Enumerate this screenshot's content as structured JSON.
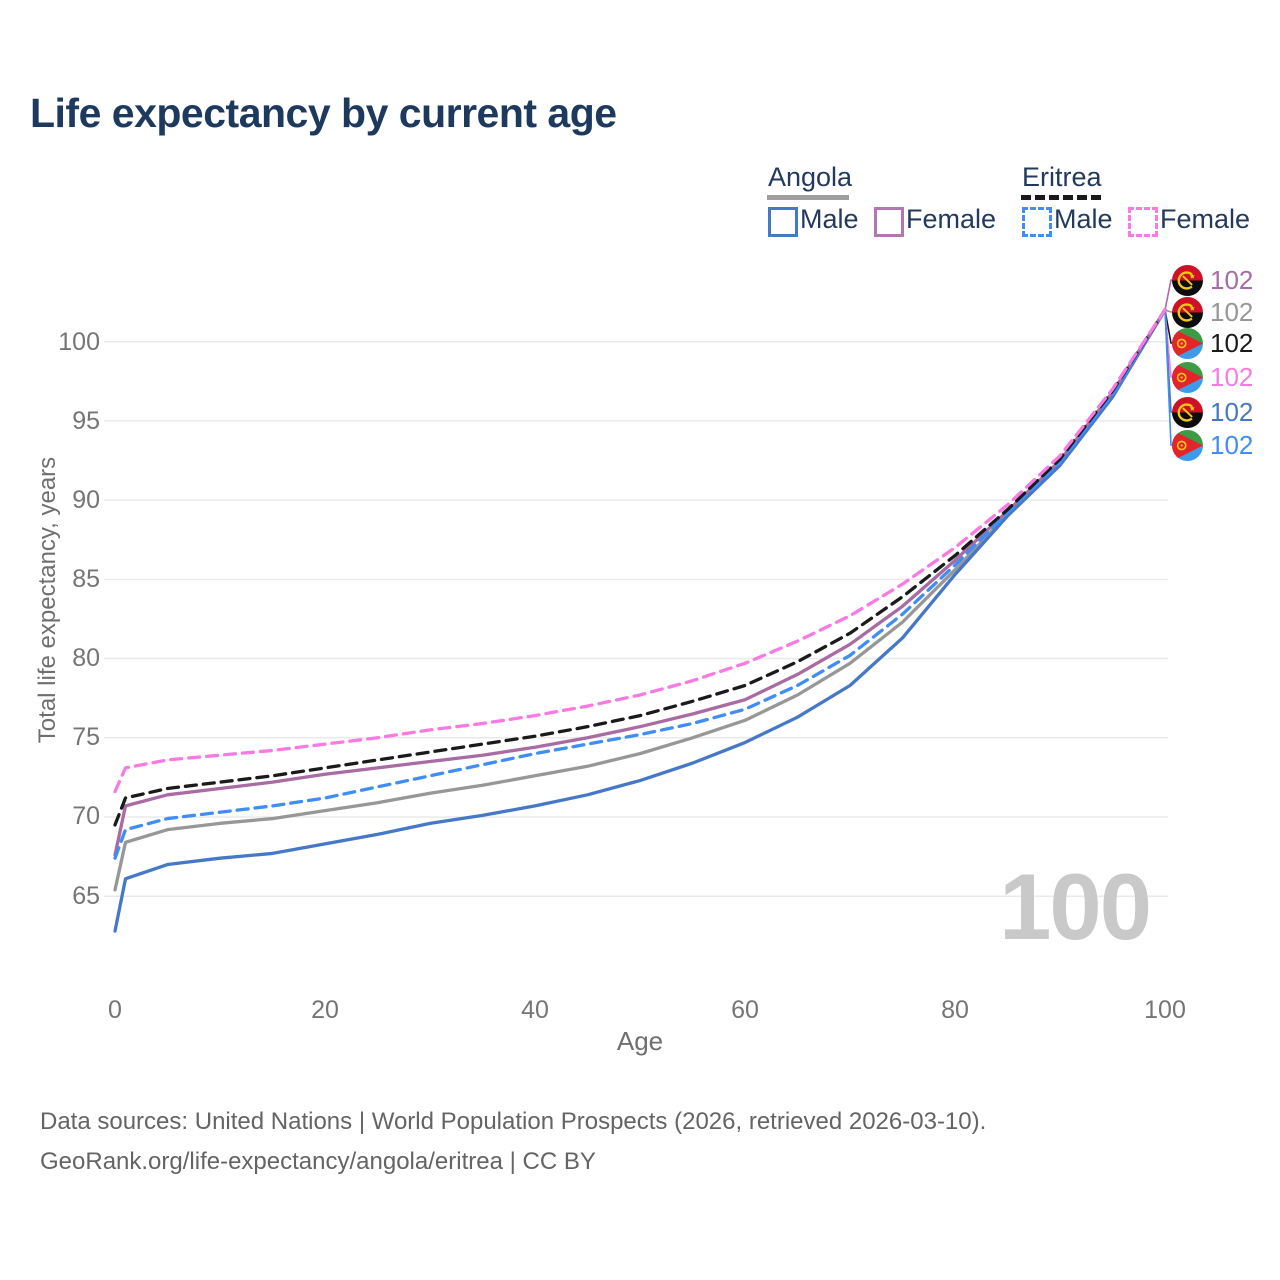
{
  "title": "Life expectancy by current age",
  "legend": {
    "groups": [
      {
        "label": "Angola",
        "underline_color": "#9e9e9e",
        "underline_style": "solid"
      },
      {
        "label": "Eritrea",
        "underline_color": "#1a1a1a",
        "underline_style": "dashed"
      }
    ],
    "entries": [
      {
        "label": "Male",
        "swatch_color": "#4678c8",
        "swatch_style": "solid"
      },
      {
        "label": "Female",
        "swatch_color": "#b277ae",
        "swatch_style": "solid"
      },
      {
        "label": "Male",
        "swatch_color": "#3f8df5",
        "swatch_style": "dashed"
      },
      {
        "label": "Female",
        "swatch_color": "#f97ae3",
        "swatch_style": "dashed"
      }
    ]
  },
  "chart_data": {
    "type": "line",
    "title": "Life expectancy by current age",
    "xlabel": "Age",
    "ylabel": "Total life expectancy, years",
    "x_ticks": [
      0,
      20,
      40,
      60,
      80,
      100
    ],
    "y_ticks": [
      65,
      70,
      75,
      80,
      85,
      90,
      95,
      100
    ],
    "xlim": [
      0,
      100
    ],
    "ylim": [
      62,
      103
    ],
    "grid": "horizontal",
    "legend_position": "top-right",
    "x": [
      0,
      1,
      5,
      10,
      15,
      20,
      25,
      30,
      35,
      40,
      45,
      50,
      55,
      60,
      65,
      70,
      75,
      80,
      85,
      90,
      95,
      100
    ],
    "series": [
      {
        "name": "Angola Female",
        "country": "Angola",
        "sex": "Female",
        "color": "#a86ba3",
        "dash": false,
        "end_label": "102",
        "values": [
          67.6,
          70.7,
          71.4,
          71.8,
          72.2,
          72.7,
          73.1,
          73.5,
          73.9,
          74.4,
          75.0,
          75.7,
          76.5,
          77.4,
          79.0,
          80.9,
          83.3,
          86.2,
          89.3,
          92.5,
          96.8,
          102
        ]
      },
      {
        "name": "Angola Both sexes",
        "country": "Angola",
        "sex": "Both",
        "color": "#979797",
        "dash": false,
        "end_label": "102",
        "values": [
          65.4,
          68.4,
          69.2,
          69.6,
          69.9,
          70.4,
          70.9,
          71.5,
          72.0,
          72.6,
          73.2,
          74.0,
          75.0,
          76.1,
          77.7,
          79.7,
          82.3,
          85.6,
          89.1,
          92.3,
          96.6,
          102
        ]
      },
      {
        "name": "Eritrea Both sexes",
        "country": "Eritrea",
        "sex": "Both",
        "color": "#1a1a1a",
        "dash": true,
        "end_label": "102",
        "values": [
          69.5,
          71.2,
          71.8,
          72.2,
          72.6,
          73.1,
          73.6,
          74.1,
          74.6,
          75.1,
          75.7,
          76.4,
          77.3,
          78.3,
          79.8,
          81.6,
          83.9,
          86.5,
          89.4,
          92.6,
          96.9,
          102
        ]
      },
      {
        "name": "Eritrea Female",
        "country": "Eritrea",
        "sex": "Female",
        "color": "#f97ae3",
        "dash": true,
        "end_label": "102",
        "values": [
          71.6,
          73.1,
          73.6,
          73.9,
          74.2,
          74.6,
          75.0,
          75.5,
          75.9,
          76.4,
          77.0,
          77.7,
          78.6,
          79.7,
          81.1,
          82.7,
          84.7,
          87.0,
          89.7,
          92.8,
          97.0,
          102
        ]
      },
      {
        "name": "Angola Male",
        "country": "Angola",
        "sex": "Male",
        "color": "#4678c8",
        "dash": false,
        "end_label": "102",
        "values": [
          62.8,
          66.1,
          67.0,
          67.4,
          67.7,
          68.3,
          68.9,
          69.6,
          70.1,
          70.7,
          71.4,
          72.3,
          73.4,
          74.7,
          76.3,
          78.3,
          81.3,
          85.3,
          89.0,
          92.2,
          96.5,
          102
        ]
      },
      {
        "name": "Eritrea Male",
        "country": "Eritrea",
        "sex": "Male",
        "color": "#3f8df5",
        "dash": true,
        "end_label": "102",
        "values": [
          67.4,
          69.2,
          69.9,
          70.3,
          70.7,
          71.2,
          71.9,
          72.6,
          73.3,
          74.0,
          74.6,
          75.2,
          75.9,
          76.8,
          78.3,
          80.2,
          82.8,
          85.9,
          89.2,
          92.4,
          96.7,
          102
        ]
      }
    ]
  },
  "watermark": "100",
  "footer": {
    "line1": "Data sources: United Nations | World Population Prospects (2026, retrieved 2026-03-10).",
    "line2": "GeoRank.org/life-expectancy/angola/eritrea | CC BY"
  }
}
